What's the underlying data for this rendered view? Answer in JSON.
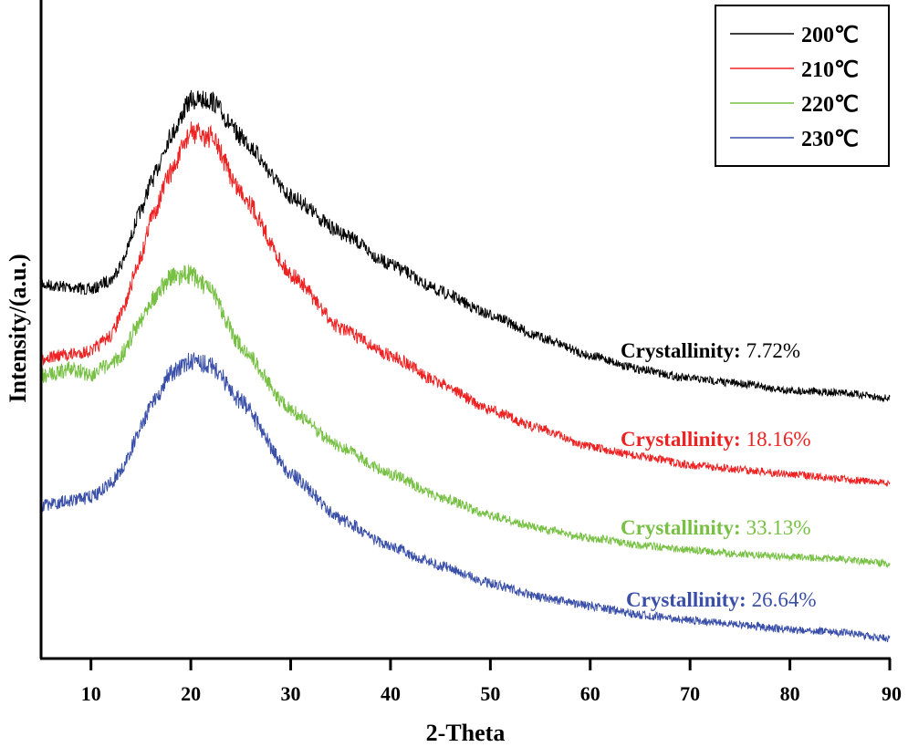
{
  "chart_data": {
    "type": "line",
    "title": "",
    "xlabel": "2-Theta",
    "ylabel": "Intensity/(a.u.)",
    "xlim": [
      5,
      90
    ],
    "ylim": [
      0,
      100
    ],
    "xticks": [
      10,
      20,
      30,
      40,
      50,
      60,
      70,
      80,
      90
    ],
    "yticks_shown": false,
    "grid": false,
    "legend_placement": "top-right",
    "x": [
      5,
      8,
      10,
      12,
      13,
      15,
      16,
      18,
      20,
      22,
      25,
      30,
      35,
      40,
      45,
      50,
      55,
      60,
      65,
      70,
      75,
      80,
      85,
      90
    ],
    "series": [
      {
        "name": "200℃",
        "color": "#000000",
        "values": [
          56.8,
          56.4,
          56.0,
          57.5,
          59.8,
          68.0,
          72.3,
          79.5,
          84.8,
          84.8,
          79.2,
          70.2,
          64.7,
          59.8,
          55.7,
          52.2,
          48.8,
          46.0,
          43.9,
          42.5,
          41.8,
          40.7,
          40.4,
          39.5
        ],
        "annotation_label": "Crystallinity:",
        "annotation_value": "7.72%"
      },
      {
        "name": "210℃",
        "color": "#ee2222",
        "values": [
          45.6,
          46.2,
          46.7,
          49.0,
          52.2,
          61.0,
          66.8,
          73.8,
          79.9,
          79.2,
          70.9,
          58.4,
          50.1,
          46.0,
          41.8,
          37.7,
          34.9,
          32.1,
          30.7,
          29.4,
          28.7,
          28.0,
          27.3,
          26.6
        ],
        "annotation_label": "Crystallinity:",
        "annotation_value": "18.16%"
      },
      {
        "name": "220℃",
        "color": "#77c043",
        "values": [
          42.9,
          43.9,
          43.2,
          44.5,
          46.0,
          51.5,
          54.5,
          57.8,
          58.4,
          55.7,
          47.4,
          37.7,
          32.1,
          28.0,
          24.5,
          21.7,
          19.7,
          18.3,
          17.2,
          16.5,
          15.9,
          15.5,
          15.1,
          14.4
        ],
        "annotation_label": "Crystallinity:",
        "annotation_value": "33.13%"
      },
      {
        "name": "230℃",
        "color": "#3a4fa8",
        "values": [
          23.1,
          24.0,
          24.5,
          26.6,
          28.5,
          34.9,
          38.5,
          43.2,
          45.3,
          44.6,
          39.1,
          28.0,
          21.1,
          16.9,
          14.1,
          11.4,
          9.3,
          8.0,
          6.6,
          5.8,
          5.1,
          4.4,
          4.0,
          3.0
        ],
        "annotation_label": "Crystallinity:",
        "annotation_value": "26.64%"
      }
    ]
  }
}
